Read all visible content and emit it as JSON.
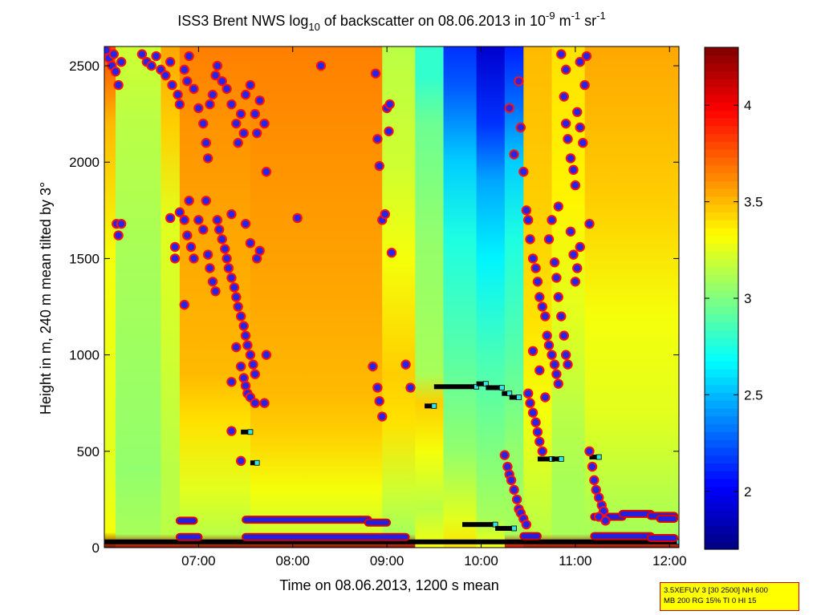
{
  "chart_data": {
    "type": "heatmap",
    "title": {
      "pre": "ISS3 Brent NWS log",
      "sub": "10",
      "mid": " of backscatter on 08.06.2013 in 10",
      "exp1": "-9",
      "mid2": " m",
      "exp2": "-1",
      "mid3": " sr",
      "exp3": "-1"
    },
    "xlabel": "Time on 08.06.2013, 1200 s mean",
    "ylabel": "Height in m, 240 m mean tilted by 3°",
    "x_range_hours": [
      6.0,
      12.1
    ],
    "y_range_m": [
      0,
      2600
    ],
    "x_ticks": [
      {
        "value": 7,
        "label": "07:00"
      },
      {
        "value": 8,
        "label": "08:00"
      },
      {
        "value": 9,
        "label": "09:00"
      },
      {
        "value": 10,
        "label": "10:00"
      },
      {
        "value": 11,
        "label": "11:00"
      },
      {
        "value": 12,
        "label": "12:00"
      }
    ],
    "y_ticks": [
      {
        "value": 0,
        "label": "0"
      },
      {
        "value": 500,
        "label": "500"
      },
      {
        "value": 1000,
        "label": "1000"
      },
      {
        "value": 1500,
        "label": "1500"
      },
      {
        "value": 2000,
        "label": "2000"
      },
      {
        "value": 2500,
        "label": "2500"
      }
    ],
    "colorbar": {
      "range": [
        1.7,
        4.3
      ],
      "ticks": [
        {
          "value": 2,
          "label": "2"
        },
        {
          "value": 2.5,
          "label": "2.5"
        },
        {
          "value": 3,
          "label": "3"
        },
        {
          "value": 3.5,
          "label": "3.5"
        },
        {
          "value": 4,
          "label": "4"
        }
      ]
    },
    "field_columns": [
      [
        6.0,
        6.12,
        [
          [
            0,
            4.3
          ],
          [
            80,
            3.3
          ],
          [
            400,
            3.25
          ],
          [
            1500,
            3.3
          ],
          [
            2200,
            3.5
          ],
          [
            2600,
            3.8
          ]
        ]
      ],
      [
        6.12,
        6.6,
        [
          [
            0,
            4.2
          ],
          [
            70,
            3.1
          ],
          [
            400,
            3.05
          ],
          [
            1500,
            3.1
          ],
          [
            2200,
            3.15
          ],
          [
            2600,
            3.2
          ]
        ]
      ],
      [
        6.6,
        6.8,
        [
          [
            0,
            4.2
          ],
          [
            70,
            3.15
          ],
          [
            400,
            3.15
          ],
          [
            1000,
            3.2
          ],
          [
            1700,
            3.25
          ],
          [
            2200,
            3.45
          ],
          [
            2600,
            3.55
          ]
        ]
      ],
      [
        6.8,
        7.55,
        [
          [
            0,
            4.25
          ],
          [
            70,
            3.15
          ],
          [
            300,
            3.25
          ],
          [
            650,
            3.4
          ],
          [
            900,
            3.5
          ],
          [
            1600,
            3.55
          ],
          [
            2200,
            3.6
          ],
          [
            2600,
            3.65
          ]
        ]
      ],
      [
        7.55,
        8.95,
        [
          [
            0,
            4.25
          ],
          [
            70,
            3.2
          ],
          [
            300,
            3.3
          ],
          [
            600,
            3.45
          ],
          [
            800,
            3.5
          ],
          [
            1300,
            3.55
          ],
          [
            2000,
            3.6
          ],
          [
            2600,
            3.65
          ]
        ]
      ],
      [
        8.95,
        9.3,
        [
          [
            0,
            4.2
          ],
          [
            70,
            3.1
          ],
          [
            300,
            3.2
          ],
          [
            650,
            3.4
          ],
          [
            900,
            3.45
          ],
          [
            1500,
            3.3
          ],
          [
            2000,
            3.2
          ],
          [
            2600,
            3.15
          ]
        ]
      ],
      [
        9.3,
        9.6,
        [
          [
            0,
            3.3
          ],
          [
            200,
            3.15
          ],
          [
            500,
            3.3
          ],
          [
            750,
            3.45
          ],
          [
            900,
            3.1
          ],
          [
            1600,
            3.05
          ],
          [
            2200,
            2.95
          ],
          [
            2450,
            2.8
          ],
          [
            2600,
            2.8
          ]
        ]
      ],
      [
        9.6,
        9.95,
        [
          [
            0,
            3.4
          ],
          [
            150,
            3.25
          ],
          [
            500,
            3.05
          ],
          [
            1000,
            2.9
          ],
          [
            1600,
            2.75
          ],
          [
            2000,
            2.55
          ],
          [
            2400,
            2.25
          ],
          [
            2600,
            2.15
          ]
        ]
      ],
      [
        9.95,
        10.25,
        [
          [
            0,
            3.3
          ],
          [
            150,
            3.1
          ],
          [
            500,
            3.0
          ],
          [
            1000,
            2.85
          ],
          [
            1500,
            2.65
          ],
          [
            1900,
            2.45
          ],
          [
            2200,
            2.15
          ],
          [
            2600,
            1.9
          ]
        ]
      ],
      [
        10.25,
        10.45,
        [
          [
            0,
            4.1
          ],
          [
            70,
            3.1
          ],
          [
            500,
            3.05
          ],
          [
            1000,
            2.9
          ],
          [
            1600,
            2.75
          ],
          [
            2000,
            2.55
          ],
          [
            2300,
            2.3
          ],
          [
            2600,
            2.1
          ]
        ]
      ],
      [
        10.45,
        10.75,
        [
          [
            0,
            4.2
          ],
          [
            70,
            3.15
          ],
          [
            300,
            3.2
          ],
          [
            700,
            3.3
          ],
          [
            1200,
            3.4
          ],
          [
            1800,
            3.45
          ],
          [
            2600,
            3.5
          ]
        ]
      ],
      [
        10.75,
        11.1,
        [
          [
            0,
            4.2
          ],
          [
            70,
            3.1
          ],
          [
            300,
            3.1
          ],
          [
            700,
            3.15
          ],
          [
            1200,
            3.25
          ],
          [
            1800,
            3.35
          ],
          [
            2600,
            3.4
          ]
        ]
      ],
      [
        11.1,
        12.1,
        [
          [
            0,
            4.2
          ],
          [
            70,
            3.1
          ],
          [
            300,
            3.15
          ],
          [
            700,
            3.25
          ],
          [
            1200,
            3.3
          ],
          [
            1800,
            3.45
          ],
          [
            2600,
            3.55
          ]
        ]
      ]
    ],
    "scatter_points": [
      [
        6.02,
        2580
      ],
      [
        6.05,
        2540
      ],
      [
        6.08,
        2500
      ],
      [
        6.1,
        2560
      ],
      [
        6.12,
        2470
      ],
      [
        6.15,
        2400
      ],
      [
        6.18,
        2520
      ],
      [
        6.13,
        1680
      ],
      [
        6.18,
        1680
      ],
      [
        6.15,
        1620
      ],
      [
        6.4,
        2560
      ],
      [
        6.45,
        2520
      ],
      [
        6.5,
        2500
      ],
      [
        6.55,
        2550
      ],
      [
        6.6,
        2480
      ],
      [
        6.65,
        2450
      ],
      [
        6.7,
        2520
      ],
      [
        6.72,
        2400
      ],
      [
        6.78,
        2350
      ],
      [
        6.8,
        2300
      ],
      [
        6.85,
        2480
      ],
      [
        6.88,
        2420
      ],
      [
        6.9,
        2550
      ],
      [
        6.95,
        2380
      ],
      [
        7.0,
        2280
      ],
      [
        7.05,
        2200
      ],
      [
        7.08,
        2100
      ],
      [
        7.1,
        2020
      ],
      [
        7.12,
        2300
      ],
      [
        7.15,
        2350
      ],
      [
        7.18,
        2450
      ],
      [
        7.2,
        2500
      ],
      [
        7.25,
        2420
      ],
      [
        7.3,
        2380
      ],
      [
        7.35,
        2300
      ],
      [
        7.4,
        2200
      ],
      [
        7.42,
        2100
      ],
      [
        7.45,
        2250
      ],
      [
        7.48,
        2150
      ],
      [
        7.5,
        2350
      ],
      [
        7.55,
        2400
      ],
      [
        7.6,
        2250
      ],
      [
        7.62,
        2150
      ],
      [
        7.65,
        2320
      ],
      [
        7.7,
        2200
      ],
      [
        7.72,
        1950
      ],
      [
        6.7,
        1710
      ],
      [
        6.75,
        1560
      ],
      [
        6.75,
        1500
      ],
      [
        6.8,
        1740
      ],
      [
        6.85,
        1700
      ],
      [
        6.88,
        1620
      ],
      [
        6.9,
        1800
      ],
      [
        6.92,
        1560
      ],
      [
        6.95,
        1500
      ],
      [
        6.85,
        1260
      ],
      [
        7.0,
        1700
      ],
      [
        7.05,
        1650
      ],
      [
        7.08,
        1800
      ],
      [
        7.1,
        1520
      ],
      [
        7.12,
        1450
      ],
      [
        7.15,
        1380
      ],
      [
        7.18,
        1330
      ],
      [
        7.2,
        1700
      ],
      [
        7.22,
        1650
      ],
      [
        7.25,
        1600
      ],
      [
        7.28,
        1550
      ],
      [
        7.3,
        1500
      ],
      [
        7.32,
        1450
      ],
      [
        7.35,
        1400
      ],
      [
        7.38,
        1350
      ],
      [
        7.4,
        1300
      ],
      [
        7.42,
        1250
      ],
      [
        7.45,
        1200
      ],
      [
        7.48,
        1150
      ],
      [
        7.5,
        1100
      ],
      [
        7.52,
        1050
      ],
      [
        7.55,
        1000
      ],
      [
        7.58,
        950
      ],
      [
        7.6,
        900
      ],
      [
        7.35,
        1730
      ],
      [
        7.5,
        1680
      ],
      [
        7.55,
        1580
      ],
      [
        7.62,
        1500
      ],
      [
        7.65,
        1540
      ],
      [
        7.4,
        1040
      ],
      [
        7.45,
        940
      ],
      [
        7.48,
        880
      ],
      [
        7.5,
        840
      ],
      [
        7.52,
        800
      ],
      [
        7.55,
        780
      ],
      [
        7.6,
        750
      ],
      [
        7.35,
        605
      ],
      [
        7.45,
        450
      ],
      [
        7.7,
        750
      ],
      [
        7.72,
        1000
      ],
      [
        7.35,
        860
      ],
      [
        8.05,
        1710
      ],
      [
        8.3,
        2500
      ],
      [
        8.88,
        2460
      ],
      [
        8.9,
        2120
      ],
      [
        8.92,
        1980
      ],
      [
        8.95,
        1700
      ],
      [
        8.98,
        1730
      ],
      [
        9.0,
        2280
      ],
      [
        9.02,
        2160
      ],
      [
        9.05,
        1530
      ],
      [
        9.03,
        2300
      ],
      [
        8.85,
        940
      ],
      [
        8.9,
        830
      ],
      [
        8.92,
        760
      ],
      [
        8.95,
        680
      ],
      [
        9.2,
        950
      ],
      [
        9.25,
        830
      ],
      [
        10.3,
        2280
      ],
      [
        10.35,
        2040
      ],
      [
        10.4,
        2420
      ],
      [
        10.42,
        2180
      ],
      [
        10.45,
        1950
      ],
      [
        10.48,
        1750
      ],
      [
        10.5,
        1700
      ],
      [
        10.52,
        1600
      ],
      [
        10.55,
        1500
      ],
      [
        10.58,
        1450
      ],
      [
        10.6,
        1380
      ],
      [
        10.62,
        1300
      ],
      [
        10.65,
        1250
      ],
      [
        10.68,
        1200
      ],
      [
        10.7,
        1100
      ],
      [
        10.72,
        1050
      ],
      [
        10.75,
        1000
      ],
      [
        10.78,
        950
      ],
      [
        10.8,
        900
      ],
      [
        10.82,
        850
      ],
      [
        10.5,
        800
      ],
      [
        10.52,
        750
      ],
      [
        10.55,
        700
      ],
      [
        10.58,
        650
      ],
      [
        10.6,
        600
      ],
      [
        10.62,
        550
      ],
      [
        10.65,
        500
      ],
      [
        10.55,
        1020
      ],
      [
        10.62,
        920
      ],
      [
        10.68,
        780
      ],
      [
        10.72,
        1600
      ],
      [
        10.75,
        1700
      ],
      [
        10.78,
        1480
      ],
      [
        10.8,
        1400
      ],
      [
        10.82,
        1300
      ],
      [
        10.85,
        1200
      ],
      [
        10.88,
        1100
      ],
      [
        10.9,
        1000
      ],
      [
        10.92,
        950
      ],
      [
        10.95,
        1640
      ],
      [
        10.98,
        1520
      ],
      [
        11.0,
        1380
      ],
      [
        11.02,
        1450
      ],
      [
        11.05,
        1560
      ],
      [
        10.88,
        2340
      ],
      [
        10.9,
        2200
      ],
      [
        10.92,
        2120
      ],
      [
        10.95,
        2020
      ],
      [
        10.98,
        1960
      ],
      [
        11.0,
        1880
      ],
      [
        11.02,
        2260
      ],
      [
        11.05,
        2180
      ],
      [
        11.08,
        2100
      ],
      [
        11.1,
        2400
      ],
      [
        11.12,
        2550
      ],
      [
        11.15,
        1680
      ],
      [
        10.85,
        2560
      ],
      [
        10.9,
        2480
      ],
      [
        11.05,
        2520
      ],
      [
        10.82,
        1770
      ],
      [
        10.25,
        480
      ],
      [
        10.28,
        420
      ],
      [
        10.3,
        380
      ],
      [
        10.32,
        350
      ],
      [
        10.35,
        300
      ],
      [
        10.38,
        250
      ],
      [
        10.4,
        200
      ],
      [
        10.42,
        180
      ],
      [
        10.45,
        150
      ],
      [
        10.48,
        120
      ],
      [
        11.15,
        500
      ],
      [
        11.18,
        420
      ],
      [
        11.2,
        350
      ],
      [
        11.22,
        300
      ],
      [
        11.25,
        260
      ],
      [
        11.28,
        220
      ],
      [
        11.3,
        190
      ],
      [
        11.25,
        160
      ],
      [
        11.32,
        140
      ]
    ],
    "cloud_segments": [
      [
        7.45,
        7.55,
        600
      ],
      [
        7.55,
        7.62,
        440
      ],
      [
        9.4,
        9.5,
        735
      ],
      [
        9.5,
        9.95,
        835
      ],
      [
        9.95,
        10.05,
        850
      ],
      [
        10.05,
        10.22,
        830
      ],
      [
        10.22,
        10.3,
        800
      ],
      [
        10.3,
        10.4,
        780
      ],
      [
        10.6,
        10.75,
        460
      ],
      [
        10.75,
        10.85,
        460
      ],
      [
        11.15,
        11.25,
        470
      ],
      [
        9.8,
        10.15,
        120
      ],
      [
        10.15,
        10.35,
        100
      ],
      [
        6.0,
        12.1,
        30
      ]
    ],
    "mixing_layer": [
      [
        6.8,
        6.95,
        140
      ],
      [
        7.5,
        8.8,
        145
      ],
      [
        8.8,
        9.0,
        130
      ],
      [
        11.2,
        11.5,
        160
      ],
      [
        11.5,
        11.8,
        175
      ],
      [
        11.8,
        12.05,
        165
      ],
      [
        11.9,
        12.05,
        150
      ],
      [
        10.45,
        10.6,
        60
      ],
      [
        6.8,
        7.0,
        55
      ],
      [
        7.5,
        9.2,
        55
      ],
      [
        11.2,
        11.8,
        60
      ],
      [
        11.8,
        12.05,
        50
      ]
    ]
  },
  "info_box": {
    "line1": "3.5XEFUV 3 [30 2500] NH 600",
    "line2": "MB 200 RG 15% TI 0 HI 15"
  }
}
